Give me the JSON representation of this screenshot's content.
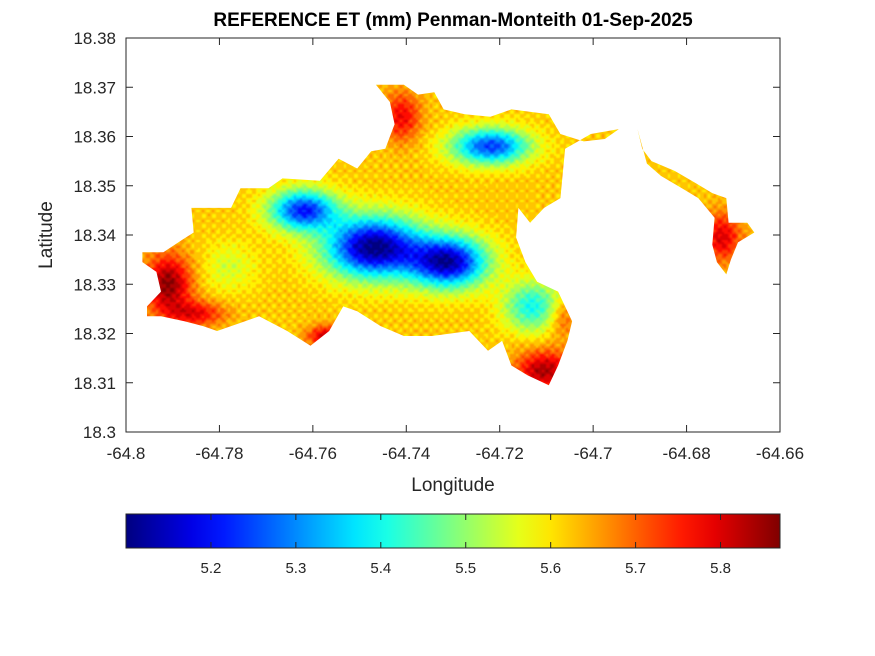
{
  "chart_data": {
    "type": "heatmap",
    "title": "REFERENCE ET (mm) Penman-Monteith 01-Sep-2025",
    "xlabel": "Longitude",
    "ylabel": "Latitude",
    "xlim": [
      -64.8,
      -64.66
    ],
    "ylim": [
      18.3,
      18.38
    ],
    "x_ticks": [
      -64.8,
      -64.78,
      -64.76,
      -64.74,
      -64.72,
      -64.7,
      -64.68,
      -64.66
    ],
    "x_tick_labels": [
      "-64.8",
      "-64.78",
      "-64.76",
      "-64.74",
      "-64.72",
      "-64.7",
      "-64.68",
      "-64.66"
    ],
    "y_ticks": [
      18.3,
      18.31,
      18.32,
      18.33,
      18.34,
      18.35,
      18.36,
      18.37,
      18.38
    ],
    "y_tick_labels": [
      "18.3",
      "18.31",
      "18.32",
      "18.33",
      "18.34",
      "18.35",
      "18.36",
      "18.37",
      "18.38"
    ],
    "colormap": "jet",
    "colorbar": {
      "orientation": "horizontal",
      "location": "below",
      "clim": [
        5.1,
        5.87
      ],
      "ticks": [
        5.2,
        5.3,
        5.4,
        5.5,
        5.6,
        5.7,
        5.8
      ],
      "tick_labels": [
        "5.2",
        "5.3",
        "5.4",
        "5.5",
        "5.6",
        "5.7",
        "5.8"
      ],
      "colors": [
        "#00008f",
        "#0000ff",
        "#00ffff",
        "#ffff00",
        "#ff0000",
        "#800000"
      ]
    },
    "land_outline": [
      [
        -64.792,
        18.3365
      ],
      [
        -64.788,
        18.339
      ],
      [
        -64.7855,
        18.3405
      ],
      [
        -64.786,
        18.3455
      ],
      [
        -64.7775,
        18.3455
      ],
      [
        -64.7755,
        18.3495
      ],
      [
        -64.7695,
        18.3495
      ],
      [
        -64.7665,
        18.3515
      ],
      [
        -64.7585,
        18.351
      ],
      [
        -64.7545,
        18.3555
      ],
      [
        -64.7505,
        18.3535
      ],
      [
        -64.7475,
        18.357
      ],
      [
        -64.7445,
        18.3575
      ],
      [
        -64.7425,
        18.3625
      ],
      [
        -64.7435,
        18.367
      ],
      [
        -64.7465,
        18.3705
      ],
      [
        -64.7405,
        18.3705
      ],
      [
        -64.7375,
        18.3685
      ],
      [
        -64.734,
        18.369
      ],
      [
        -64.732,
        18.3655
      ],
      [
        -64.7275,
        18.3645
      ],
      [
        -64.722,
        18.364
      ],
      [
        -64.7175,
        18.3655
      ],
      [
        -64.7095,
        18.3645
      ],
      [
        -64.707,
        18.3605
      ],
      [
        -64.702,
        18.359
      ],
      [
        -64.6975,
        18.3595
      ],
      [
        -64.6945,
        18.3615
      ],
      [
        -64.7005,
        18.3605
      ],
      [
        -64.706,
        18.3575
      ],
      [
        -64.707,
        18.3475
      ],
      [
        -64.7105,
        18.3455
      ],
      [
        -64.7135,
        18.3425
      ],
      [
        -64.716,
        18.3455
      ],
      [
        -64.7165,
        18.3395
      ],
      [
        -64.7145,
        18.3345
      ],
      [
        -64.712,
        18.3305
      ],
      [
        -64.7075,
        18.3285
      ],
      [
        -64.7045,
        18.3225
      ],
      [
        -64.7055,
        18.3185
      ],
      [
        -64.7075,
        18.3135
      ],
      [
        -64.7095,
        18.3095
      ],
      [
        -64.714,
        18.3115
      ],
      [
        -64.7175,
        18.3135
      ],
      [
        -64.7195,
        18.3185
      ],
      [
        -64.7225,
        18.3165
      ],
      [
        -64.7265,
        18.3205
      ],
      [
        -64.7345,
        18.3195
      ],
      [
        -64.7405,
        18.3195
      ],
      [
        -64.7455,
        18.3215
      ],
      [
        -64.7505,
        18.3245
      ],
      [
        -64.7535,
        18.3255
      ],
      [
        -64.7565,
        18.3205
      ],
      [
        -64.7605,
        18.3175
      ],
      [
        -64.7655,
        18.3205
      ],
      [
        -64.7715,
        18.3235
      ],
      [
        -64.7745,
        18.3225
      ],
      [
        -64.7805,
        18.3205
      ],
      [
        -64.7835,
        18.3215
      ],
      [
        -64.7875,
        18.3225
      ],
      [
        -64.7925,
        18.3235
      ],
      [
        -64.7955,
        18.3235
      ],
      [
        -64.7955,
        18.3255
      ],
      [
        -64.7925,
        18.3285
      ],
      [
        -64.7935,
        18.3325
      ],
      [
        -64.7965,
        18.3345
      ],
      [
        -64.7965,
        18.3365
      ]
    ],
    "east_strip": [
      [
        -64.6905,
        18.3615
      ],
      [
        -64.6895,
        18.3575
      ],
      [
        -64.6875,
        18.355
      ],
      [
        -64.6825,
        18.353
      ],
      [
        -64.678,
        18.3505
      ],
      [
        -64.6745,
        18.3485
      ],
      [
        -64.6715,
        18.3475
      ],
      [
        -64.671,
        18.3425
      ],
      [
        -64.667,
        18.3425
      ],
      [
        -64.6655,
        18.3405
      ],
      [
        -64.669,
        18.3385
      ],
      [
        -64.6705,
        18.335
      ],
      [
        -64.6715,
        18.332
      ],
      [
        -64.6735,
        18.3345
      ],
      [
        -64.6745,
        18.338
      ],
      [
        -64.674,
        18.3435
      ],
      [
        -64.6775,
        18.3475
      ],
      [
        -64.681,
        18.3495
      ],
      [
        -64.6855,
        18.352
      ],
      [
        -64.6885,
        18.3545
      ]
    ],
    "value_fields": [
      {
        "lon": -64.747,
        "lat": 18.3375,
        "value": 5.1,
        "spread_lon": 0.01,
        "spread_lat": 0.006
      },
      {
        "lon": -64.731,
        "lat": 18.3345,
        "value": 5.14,
        "spread_lon": 0.008,
        "spread_lat": 0.005
      },
      {
        "lon": -64.762,
        "lat": 18.345,
        "value": 5.22,
        "spread_lon": 0.007,
        "spread_lat": 0.004
      },
      {
        "lon": -64.722,
        "lat": 18.358,
        "value": 5.24,
        "spread_lon": 0.008,
        "spread_lat": 0.0035
      },
      {
        "lon": -64.713,
        "lat": 18.3255,
        "value": 5.4,
        "spread_lon": 0.006,
        "spread_lat": 0.005
      },
      {
        "lon": -64.778,
        "lat": 18.3335,
        "value": 5.55,
        "spread_lon": 0.006,
        "spread_lat": 0.005
      },
      {
        "lon": -64.791,
        "lat": 18.33,
        "value": 5.86,
        "spread_lon": 0.005,
        "spread_lat": 0.006
      },
      {
        "lon": -64.785,
        "lat": 18.324,
        "value": 5.78,
        "spread_lon": 0.006,
        "spread_lat": 0.0025
      },
      {
        "lon": -64.757,
        "lat": 18.3195,
        "value": 5.82,
        "spread_lon": 0.004,
        "spread_lat": 0.002
      },
      {
        "lon": -64.741,
        "lat": 18.364,
        "value": 5.78,
        "spread_lon": 0.004,
        "spread_lat": 0.005
      },
      {
        "lon": -64.7105,
        "lat": 18.3125,
        "value": 5.84,
        "spread_lon": 0.006,
        "spread_lat": 0.004
      },
      {
        "lon": -64.7065,
        "lat": 18.323,
        "value": 5.72,
        "spread_lon": 0.003,
        "spread_lat": 0.004
      },
      {
        "lon": -64.6725,
        "lat": 18.3395,
        "value": 5.8,
        "spread_lon": 0.004,
        "spread_lat": 0.005
      }
    ]
  }
}
